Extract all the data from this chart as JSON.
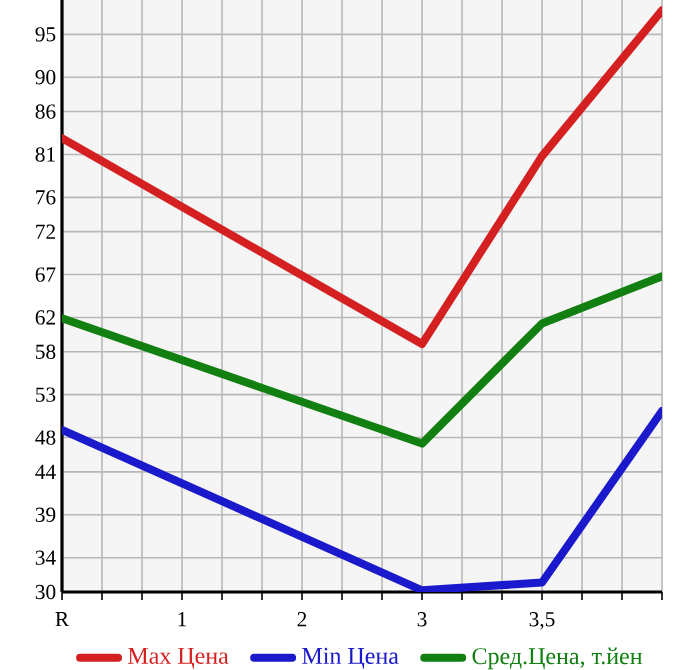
{
  "chart_data": {
    "type": "line",
    "categories": [
      "R",
      "1",
      "2",
      "3",
      "3,5",
      null
    ],
    "series": [
      {
        "name": "Max Цена",
        "color": "#d42020",
        "values": [
          82.9,
          null,
          null,
          58.9,
          80.8,
          97.8
        ]
      },
      {
        "name": "Min Цена",
        "color": "#1a1acc",
        "values": [
          48.9,
          null,
          null,
          30.2,
          31.1,
          51.1
        ]
      },
      {
        "name": "Сред.Цена, т.йен",
        "color": "#118011",
        "values": [
          61.9,
          null,
          null,
          47.3,
          61.3,
          66.8
        ]
      }
    ],
    "ylim": [
      30,
      99
    ],
    "yticks": [
      30,
      34,
      39,
      44,
      48,
      53,
      58,
      62,
      67,
      72,
      76,
      81,
      86,
      90,
      95
    ],
    "grid": true,
    "legend": "bottom",
    "marker": "none",
    "line_style": "solid"
  }
}
